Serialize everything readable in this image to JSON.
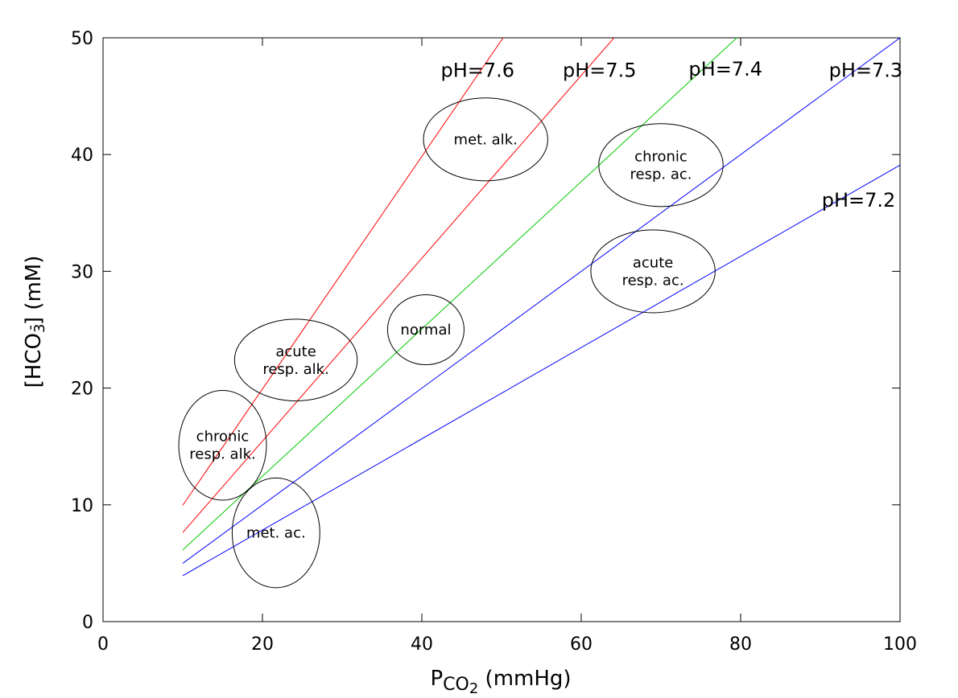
{
  "chart_data": {
    "type": "line",
    "x_range": [
      0,
      100
    ],
    "y_range": [
      0,
      50
    ],
    "x_ticks": [
      0,
      20,
      40,
      60,
      80,
      100
    ],
    "y_ticks": [
      0,
      10,
      20,
      30,
      40,
      50
    ],
    "xlabel": {
      "prefix": "P",
      "sub": "CO",
      "subsub": "2",
      "units": " (mmHg)"
    },
    "ylabel": {
      "text": "[HCO",
      "sub": "3",
      "sup": "-",
      "units": "] (mM)"
    },
    "grid": false,
    "series": [
      {
        "name": "pH=7.6",
        "color": "#ff0000",
        "x": [
          10,
          50.5
        ],
        "y": [
          9.96,
          50.3
        ]
      },
      {
        "name": "pH=7.5",
        "color": "#ff0000",
        "x": [
          10,
          64.5
        ],
        "y": [
          7.63,
          50.3
        ]
      },
      {
        "name": "pH=7.4",
        "color": "#00cc00",
        "x": [
          10,
          80
        ],
        "y": [
          6.14,
          50.3
        ]
      },
      {
        "name": "pH=7.3",
        "color": "#0000ff",
        "x": [
          10,
          100
        ],
        "y": [
          4.99,
          50.0
        ]
      },
      {
        "name": "pH=7.2",
        "color": "#0000ff",
        "x": [
          10,
          100
        ],
        "y": [
          3.93,
          39.1
        ]
      }
    ],
    "line_labels": [
      {
        "text": "pH=7.6",
        "x": 47,
        "y": 47.2
      },
      {
        "text": "pH=7.5",
        "x": 62.3,
        "y": 47.2
      },
      {
        "text": "pH=7.4",
        "x": 78.1,
        "y": 47.3
      },
      {
        "text": "pH=7.3",
        "x": 95.7,
        "y": 47.2
      },
      {
        "text": "pH=7.2",
        "x": 94.8,
        "y": 36.1
      }
    ],
    "regions": [
      {
        "lines": [
          "met. alk."
        ],
        "cx": 48,
        "cy": 41.3,
        "rx": 7.8,
        "ry": 3.55
      },
      {
        "lines": [
          "chronic",
          "resp. ac."
        ],
        "cx": 70,
        "cy": 39.1,
        "rx": 7.8,
        "ry": 3.55
      },
      {
        "lines": [
          "normal"
        ],
        "cx": 40.5,
        "cy": 25,
        "rx": 4.8,
        "ry": 3.0
      },
      {
        "lines": [
          "acute",
          "resp. ac."
        ],
        "cx": 69,
        "cy": 30,
        "rx": 7.8,
        "ry": 3.55
      },
      {
        "lines": [
          "acute",
          "resp. alk."
        ],
        "cx": 24.2,
        "cy": 22.4,
        "rx": 7.7,
        "ry": 3.5
      },
      {
        "lines": [
          "chronic",
          "resp. alk."
        ],
        "cx": 15,
        "cy": 15.1,
        "rx": 5.5,
        "ry": 4.7
      },
      {
        "lines": [
          "met. ac."
        ],
        "cx": 21.7,
        "cy": 7.6,
        "rx": 5.5,
        "ry": 4.7
      }
    ]
  }
}
